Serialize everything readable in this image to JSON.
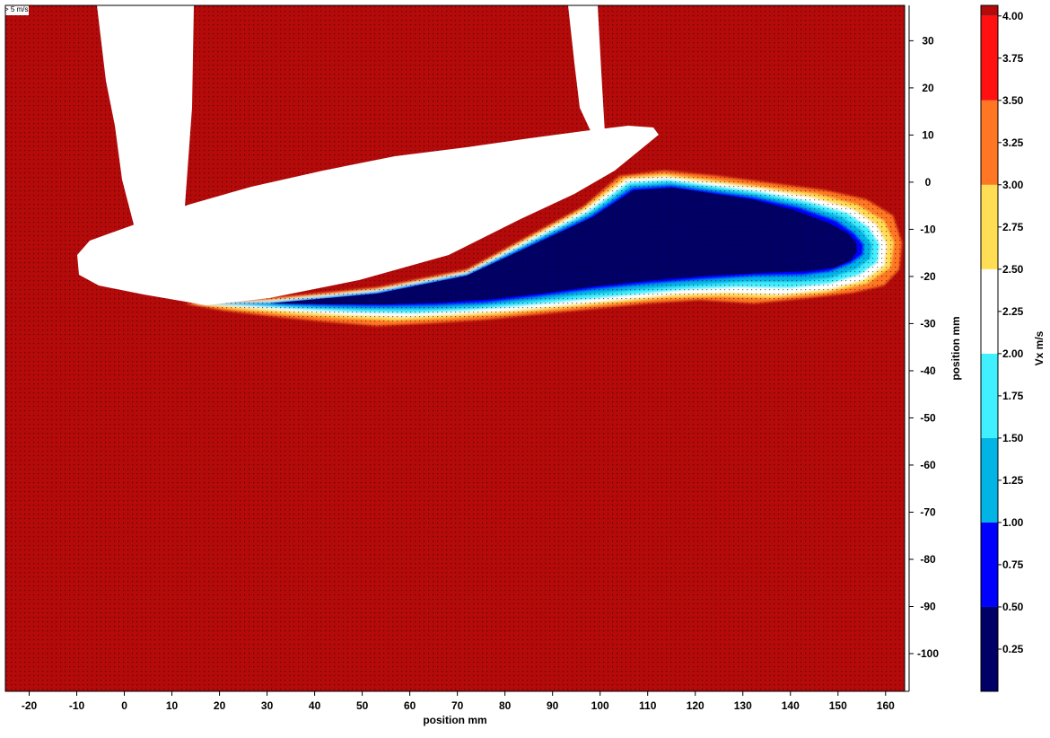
{
  "chart_data": {
    "type": "heatmap",
    "title": "",
    "xlabel": "position mm",
    "ylabel": "position mm",
    "colorbar_label": "Vx m/s",
    "vector_reference_label": "> 5 m/s",
    "xlim": [
      -25,
      164
    ],
    "ylim": [
      -108,
      37.5
    ],
    "x_ticks": [
      -20,
      -10,
      0,
      10,
      20,
      30,
      40,
      50,
      60,
      70,
      80,
      90,
      100,
      110,
      120,
      130,
      140,
      150,
      160
    ],
    "y_ticks": [
      30,
      20,
      10,
      0,
      -10,
      -20,
      -30,
      -40,
      -50,
      -60,
      -70,
      -80,
      -90,
      -100
    ],
    "colorbar_ticks": [
      "4.00",
      "3.75",
      "3.50",
      "3.25",
      "3.00",
      "2.75",
      "2.50",
      "2.25",
      "2.00",
      "1.75",
      "1.50",
      "1.25",
      "1.00",
      "0.75",
      "0.50",
      "0.25"
    ],
    "color_levels": [
      {
        "min": 0.0,
        "max": 0.5,
        "color": "#000066"
      },
      {
        "min": 0.5,
        "max": 1.0,
        "color": "#0000ff"
      },
      {
        "min": 1.0,
        "max": 1.5,
        "color": "#00b4e6"
      },
      {
        "min": 1.5,
        "max": 2.0,
        "color": "#40f0ff"
      },
      {
        "min": 2.0,
        "max": 2.5,
        "color": "#ffffff"
      },
      {
        "min": 2.5,
        "max": 3.0,
        "color": "#ffdd55"
      },
      {
        "min": 3.0,
        "max": 3.5,
        "color": "#ff7722"
      },
      {
        "min": 3.5,
        "max": 4.0,
        "color": "#ff1111"
      },
      {
        "min": 4.0,
        "max": 4.5,
        "color": "#b40a0a"
      }
    ],
    "freestream_vx": 4.0,
    "wake_core_vx": 0.25,
    "masked_regions": [
      "airfoil",
      "left support strut",
      "right support strut"
    ],
    "vector_overlay": true,
    "grid": false
  }
}
